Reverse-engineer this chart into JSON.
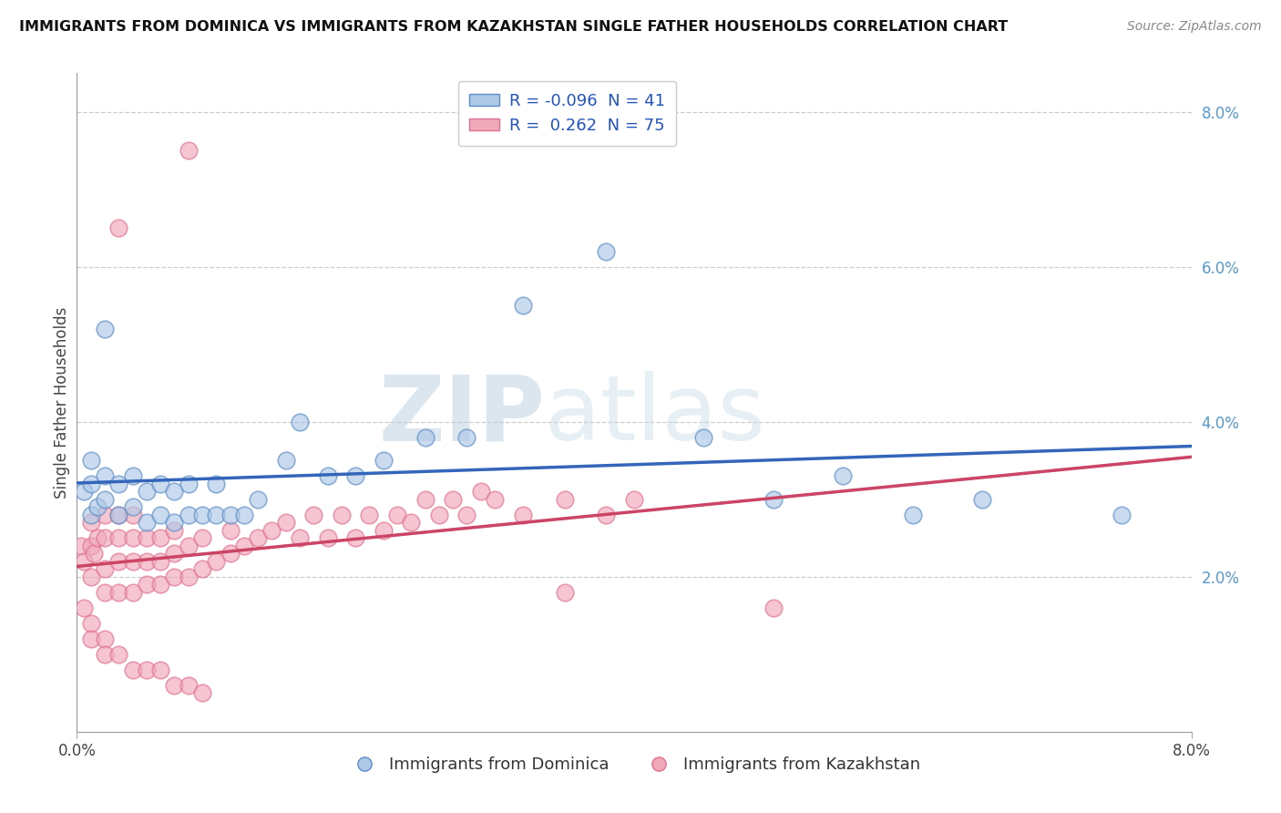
{
  "title": "IMMIGRANTS FROM DOMINICA VS IMMIGRANTS FROM KAZAKHSTAN SINGLE FATHER HOUSEHOLDS CORRELATION CHART",
  "source": "Source: ZipAtlas.com",
  "ylabel": "Single Father Households",
  "xlim": [
    0.0,
    0.08
  ],
  "ylim": [
    0.0,
    0.085
  ],
  "yticks_right": [
    0.02,
    0.04,
    0.06,
    0.08
  ],
  "ytick_labels_right": [
    "2.0%",
    "4.0%",
    "6.0%",
    "8.0%"
  ],
  "watermark_zip": "ZIP",
  "watermark_atlas": "atlas",
  "blue_color": "#5b8ec5",
  "pink_color": "#e07090",
  "blue_fill": "#aec8e8",
  "pink_fill": "#f0a8bb",
  "blue_line_color": "#3366bb",
  "pink_line_color": "#cc4466",
  "pink_dash_color": "#d08898",
  "dominica_x": [
    0.0005,
    0.001,
    0.001,
    0.001,
    0.0015,
    0.002,
    0.002,
    0.003,
    0.003,
    0.004,
    0.004,
    0.005,
    0.005,
    0.006,
    0.006,
    0.007,
    0.007,
    0.008,
    0.008,
    0.009,
    0.01,
    0.01,
    0.011,
    0.012,
    0.013,
    0.015,
    0.016,
    0.018,
    0.02,
    0.022,
    0.025,
    0.028,
    0.032,
    0.038,
    0.045,
    0.05,
    0.055,
    0.06,
    0.065,
    0.075,
    0.002
  ],
  "dominica_y": [
    0.031,
    0.028,
    0.032,
    0.035,
    0.029,
    0.03,
    0.033,
    0.028,
    0.032,
    0.029,
    0.033,
    0.027,
    0.031,
    0.028,
    0.032,
    0.027,
    0.031,
    0.028,
    0.032,
    0.028,
    0.028,
    0.032,
    0.028,
    0.028,
    0.03,
    0.035,
    0.04,
    0.033,
    0.033,
    0.035,
    0.038,
    0.038,
    0.055,
    0.062,
    0.038,
    0.03,
    0.033,
    0.028,
    0.03,
    0.028,
    0.052
  ],
  "kazakhstan_x": [
    0.0003,
    0.0005,
    0.001,
    0.001,
    0.001,
    0.0012,
    0.0015,
    0.002,
    0.002,
    0.002,
    0.002,
    0.003,
    0.003,
    0.003,
    0.003,
    0.004,
    0.004,
    0.004,
    0.004,
    0.005,
    0.005,
    0.005,
    0.006,
    0.006,
    0.006,
    0.007,
    0.007,
    0.007,
    0.008,
    0.008,
    0.009,
    0.009,
    0.01,
    0.011,
    0.011,
    0.012,
    0.013,
    0.014,
    0.015,
    0.016,
    0.017,
    0.018,
    0.019,
    0.02,
    0.021,
    0.022,
    0.023,
    0.024,
    0.025,
    0.026,
    0.027,
    0.028,
    0.029,
    0.03,
    0.032,
    0.035,
    0.038,
    0.04,
    0.0005,
    0.001,
    0.001,
    0.002,
    0.002,
    0.003,
    0.004,
    0.005,
    0.006,
    0.007,
    0.008,
    0.009,
    0.003,
    0.008,
    0.035,
    0.05
  ],
  "kazakhstan_y": [
    0.024,
    0.022,
    0.02,
    0.024,
    0.027,
    0.023,
    0.025,
    0.018,
    0.021,
    0.025,
    0.028,
    0.018,
    0.022,
    0.025,
    0.028,
    0.018,
    0.022,
    0.025,
    0.028,
    0.019,
    0.022,
    0.025,
    0.019,
    0.022,
    0.025,
    0.02,
    0.023,
    0.026,
    0.02,
    0.024,
    0.021,
    0.025,
    0.022,
    0.023,
    0.026,
    0.024,
    0.025,
    0.026,
    0.027,
    0.025,
    0.028,
    0.025,
    0.028,
    0.025,
    0.028,
    0.026,
    0.028,
    0.027,
    0.03,
    0.028,
    0.03,
    0.028,
    0.031,
    0.03,
    0.028,
    0.03,
    0.028,
    0.03,
    0.016,
    0.014,
    0.012,
    0.012,
    0.01,
    0.01,
    0.008,
    0.008,
    0.008,
    0.006,
    0.006,
    0.005,
    0.065,
    0.075,
    0.018,
    0.016
  ]
}
